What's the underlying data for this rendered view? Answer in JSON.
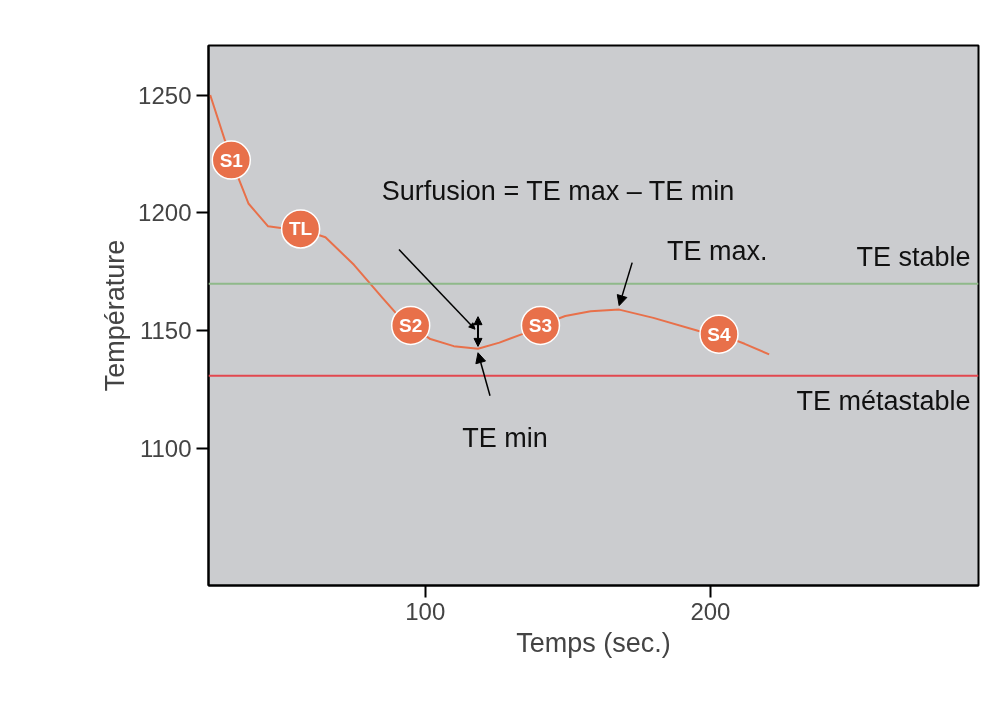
{
  "chart_data": {
    "type": "line",
    "xlabel": "Temps (sec.)",
    "ylabel": "Température",
    "xlim": [
      24,
      294
    ],
    "ylim": [
      1042,
      1271
    ],
    "xticks": [
      100,
      200
    ],
    "yticks": [
      1100,
      1150,
      1200,
      1250
    ],
    "grid": false,
    "series": [
      {
        "color": "#e8704a",
        "x": [
          24.6,
          32,
          38,
          44.9,
          50,
          56.3,
          65,
          75,
          85,
          89.5,
          94.9,
          101.8,
          110,
          118.5,
          126,
          134,
          140.4,
          149.1,
          158,
          168,
          180,
          196.5,
          203,
          212,
          220.6
        ],
        "values": [
          1250,
          1222.4,
          1204,
          1194.3,
          1193.5,
          1193.2,
          1189.7,
          1178,
          1164,
          1157.8,
          1152.3,
          1146.5,
          1143.5,
          1142.4,
          1145,
          1148.6,
          1152.3,
          1156.3,
          1158.3,
          1159,
          1155.5,
          1149.7,
          1148.6,
          1144.5,
          1140
        ]
      },
      {
        "type": "scatter",
        "marker": "circle",
        "color": "#e8704a",
        "x": [
          32,
          56.3,
          94.9,
          140.4,
          203
        ],
        "values": [
          1222.4,
          1193.2,
          1152.3,
          1152.3,
          1148.6
        ],
        "value_labels": [
          "S1",
          "TL",
          "S2",
          "S3",
          "S4"
        ]
      }
    ],
    "ref_lines": [
      {
        "axis": "y",
        "value": 1170,
        "label": "TE stable",
        "color": "#8fb98a"
      },
      {
        "axis": "y",
        "value": 1131,
        "label": "TE métastable",
        "color": "#e2474f"
      }
    ],
    "annotations": [
      "Surfusion = TE max – TE min",
      {
        "text": "TE max.",
        "x": 168,
        "y": 1159
      },
      {
        "text": "TE min",
        "x": 118.5,
        "y": 1142.4
      }
    ]
  }
}
